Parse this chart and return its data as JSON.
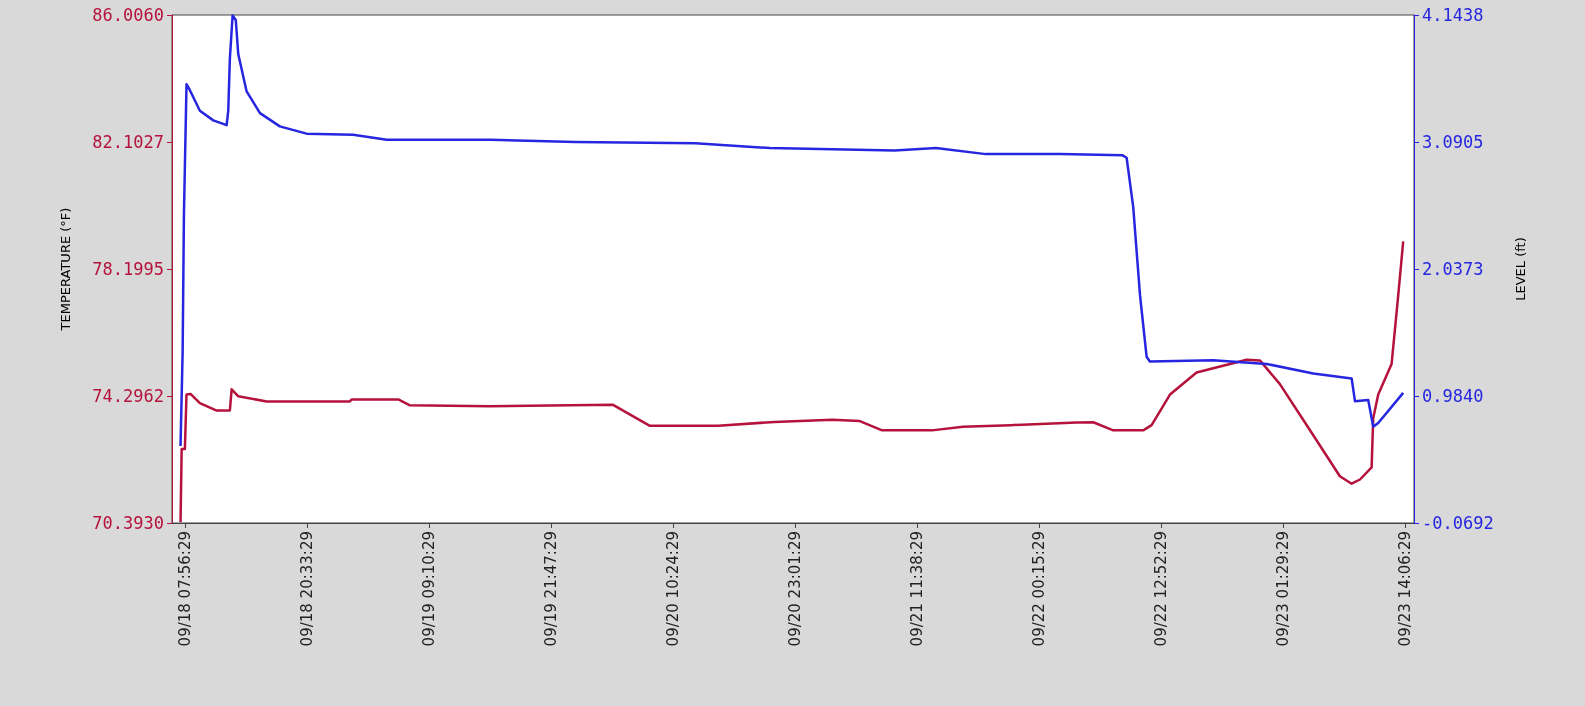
{
  "chart_data": {
    "type": "line",
    "ylabel": "TEMPERATURE (°F)",
    "y2label": "LEVEL (ft)",
    "grid": false,
    "marker": "none",
    "line_style": "solid",
    "xlim": [
      "--09-18T06:36",
      "--09-23T15:02"
    ],
    "xticks": [
      {
        "value": "--09-18T07:56",
        "label": "09/18 07:56:29"
      },
      {
        "value": "--09-18T20:33",
        "label": "09/18 20:33:29"
      },
      {
        "value": "--09-19T09:10",
        "label": "09/19 09:10:29"
      },
      {
        "value": "--09-19T21:47",
        "label": "09/19 21:47:29"
      },
      {
        "value": "--09-20T10:24",
        "label": "09/20 10:24:29"
      },
      {
        "value": "--09-20T23:01",
        "label": "09/20 23:01:29"
      },
      {
        "value": "--09-21T11:38",
        "label": "09/21 11:38:29"
      },
      {
        "value": "--09-22T00:15",
        "label": "09/22 00:15:29"
      },
      {
        "value": "--09-22T12:52",
        "label": "09/22 12:52:29"
      },
      {
        "value": "--09-23T01:29",
        "label": "09/23 01:29:29"
      },
      {
        "value": "--09-23T14:06",
        "label": "09/23 14:06:29"
      }
    ],
    "ylim": [
      70.393,
      86.006
    ],
    "yticks": [
      {
        "value": 70.393,
        "label": "70.3930"
      },
      {
        "value": 74.2962,
        "label": "74.2962"
      },
      {
        "value": 78.1995,
        "label": "78.1995"
      },
      {
        "value": 82.1027,
        "label": "82.1027"
      },
      {
        "value": 86.006,
        "label": "86.0060"
      }
    ],
    "y2lim": [
      -0.0692,
      4.1438
    ],
    "y2ticks": [
      {
        "value": -0.0692,
        "label": "-0.0692"
      },
      {
        "value": 0.984,
        "label": "0.9840"
      },
      {
        "value": 2.0373,
        "label": "2.0373"
      },
      {
        "value": 3.0905,
        "label": "3.0905"
      },
      {
        "value": 4.1438,
        "label": "4.1438"
      }
    ],
    "series": [
      {
        "color": "#b5123c",
        "x": [
          "--09-18T07:29",
          "--09-18T07:36",
          "--09-18T07:56",
          "--09-18T08:06",
          "--09-18T08:31",
          "--09-18T09:29",
          "--09-18T11:13",
          "--09-18T12:35",
          "--09-18T12:46",
          "--09-18T13:26",
          "--09-18T16:23",
          "--09-19T01:00",
          "--09-19T01:10",
          "--09-19T06:00",
          "--09-19T07:12",
          "--09-19T15:28",
          "--09-20T04:10",
          "--09-20T08:01",
          "--09-20T15:06",
          "--09-20T20:53",
          "--09-21T02:53",
          "--09-21T05:40",
          "--09-21T08:02",
          "--09-21T13:10",
          "--09-21T16:24",
          "--09-21T21:19",
          "--09-22T04:10",
          "--09-22T05:52",
          "--09-22T07:56",
          "--09-22T11:02",
          "--09-22T11:54",
          "--09-22T13:48",
          "--09-22T16:33",
          "--09-22T20:00",
          "--09-22T21:43",
          "--09-22T23:06",
          "--09-23T01:10",
          "--09-23T04:37",
          "--09-23T07:22",
          "--09-23T08:35",
          "--09-23T09:27",
          "--09-23T10:39",
          "--09-23T10:49",
          "--09-23T11:20",
          "--09-23T12:43",
          "--09-23T13:24",
          "--09-23T13:55"
        ],
        "values": [
          70.42,
          72.67,
          72.67,
          74.34,
          74.36,
          74.08,
          73.85,
          73.85,
          74.5,
          74.29,
          74.13,
          74.13,
          74.19,
          74.19,
          74.01,
          73.98,
          74.03,
          73.38,
          73.38,
          73.5,
          73.57,
          73.53,
          73.24,
          73.24,
          73.35,
          73.4,
          73.48,
          73.49,
          73.24,
          73.24,
          73.4,
          74.34,
          75.02,
          75.28,
          75.41,
          75.39,
          74.66,
          73.09,
          71.83,
          71.6,
          71.73,
          72.1,
          73.61,
          74.34,
          75.28,
          77.38,
          79.05
        ]
      },
      {
        "color": "#2626e0",
        "axis": "y2",
        "x": [
          "--09-18T07:29",
          "--09-18T07:42",
          "--09-18T07:50",
          "--09-18T08:06",
          "--09-18T08:27",
          "--09-18T09:29",
          "--09-18T10:52",
          "--09-18T12:15",
          "--09-18T12:25",
          "--09-18T12:35",
          "--09-18T12:52",
          "--09-18T13:12",
          "--09-18T13:27",
          "--09-18T14:19",
          "--09-18T15:42",
          "--09-18T17:45",
          "--09-18T20:31",
          "--09-19T01:20",
          "--09-19T04:48",
          "--09-19T15:28",
          "--09-20T00:18",
          "--09-20T12:44",
          "--09-20T20:26",
          "--09-21T09:19",
          "--09-21T13:36",
          "--09-21T18:45",
          "--09-22T02:28",
          "--09-22T08:54",
          "--09-22T09:19",
          "--09-22T10:00",
          "--09-22T10:42",
          "--09-22T11:23",
          "--09-22T11:43",
          "--09-22T18:16",
          "--09-22T23:48",
          "--09-23T04:37",
          "--09-23T08:35",
          "--09-23T08:56",
          "--09-23T10:18",
          "--09-23T10:49",
          "--09-23T11:20",
          "--09-23T13:55"
        ],
        "values": [
          0.57,
          1.35,
          2.49,
          3.57,
          3.52,
          3.35,
          3.27,
          3.23,
          3.35,
          3.78,
          4.14,
          4.1,
          3.82,
          3.51,
          3.33,
          3.22,
          3.16,
          3.15,
          3.11,
          3.11,
          3.09,
          3.08,
          3.04,
          3.02,
          3.04,
          2.99,
          2.99,
          2.98,
          2.96,
          2.55,
          1.82,
          1.31,
          1.27,
          1.28,
          1.25,
          1.17,
          1.13,
          0.94,
          0.95,
          0.73,
          0.76,
          1.01
        ]
      }
    ]
  }
}
